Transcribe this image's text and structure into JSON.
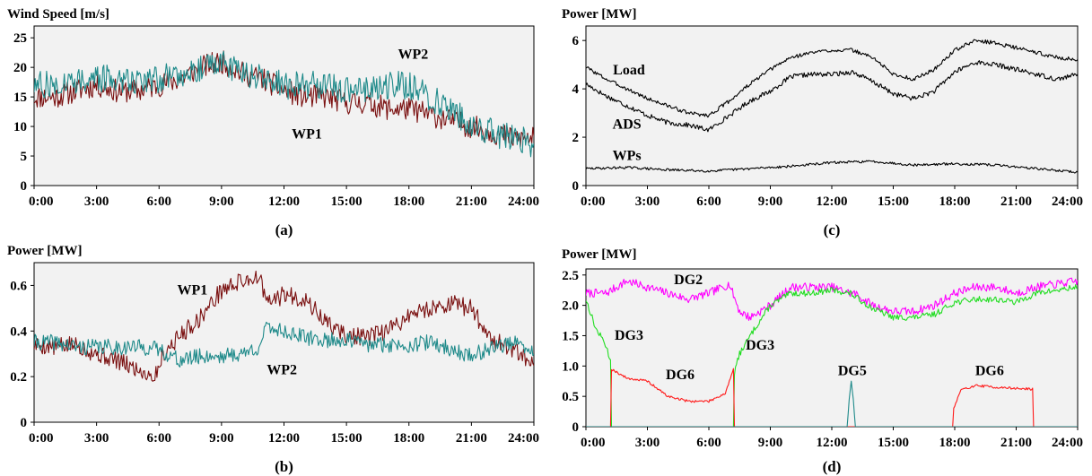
{
  "colors": {
    "wp1": "#7a1010",
    "wp2": "#1f8a8a",
    "black": "#000000",
    "dg2": "#ff00ff",
    "dg3": "#22dd22",
    "dg6": "#ff1a1a",
    "dg5": "#1f8a8a",
    "plot_bg": "#f2f2f2"
  },
  "chart_data": [
    {
      "id": "a",
      "type": "line",
      "panel_label": "(a)",
      "ylabel": "Wind Speed [m/s]",
      "xlabel": "",
      "xlim": [
        0,
        24
      ],
      "ylim": [
        0,
        27
      ],
      "x_ticks": [
        0,
        3,
        6,
        9,
        12,
        15,
        18,
        21,
        24
      ],
      "x_tick_labels": [
        "0:00",
        "3:00",
        "6:00",
        "9:00",
        "12:00",
        "15:00",
        "18:00",
        "21:00",
        "24:00"
      ],
      "y_ticks": [
        0,
        5,
        10,
        15,
        20,
        25
      ],
      "y_tick_labels": [
        "0",
        "5",
        "10",
        "15",
        "20",
        "25"
      ],
      "grid": false,
      "series": [
        {
          "name": "WP1",
          "color": "wp1",
          "noise": 2.0,
          "seed": 11,
          "x": [
            0,
            1,
            2,
            3,
            4,
            5,
            6,
            7,
            8,
            9,
            10,
            11,
            12,
            13,
            14,
            15,
            16,
            17,
            18,
            19,
            20,
            21,
            22,
            23,
            24
          ],
          "y": [
            15,
            15,
            16,
            17,
            16,
            16,
            17,
            18,
            20,
            21,
            19,
            18,
            16,
            15,
            15,
            14,
            14,
            13,
            13,
            12,
            11,
            10,
            9,
            8,
            8
          ]
        },
        {
          "name": "WP2",
          "color": "wp2",
          "noise": 2.4,
          "seed": 27,
          "x": [
            0,
            1,
            2,
            3,
            4,
            5,
            6,
            7,
            8,
            9,
            10,
            11,
            12,
            13,
            14,
            15,
            16,
            17,
            18,
            19,
            20,
            21,
            22,
            23,
            24
          ],
          "y": [
            17,
            17,
            18,
            18,
            18,
            18,
            18,
            19,
            20,
            21,
            19,
            18,
            17,
            17,
            17,
            16,
            16,
            17,
            17,
            15,
            13,
            10,
            9,
            8,
            7
          ]
        }
      ],
      "annotations": [
        {
          "text": "WP2",
          "x": 18.2,
          "y": 21.5
        },
        {
          "text": "WP1",
          "x": 13.1,
          "y": 8.0
        }
      ]
    },
    {
      "id": "b",
      "type": "line",
      "panel_label": "(b)",
      "ylabel": "Power [MW]",
      "xlabel": "",
      "xlim": [
        0,
        24
      ],
      "ylim": [
        0,
        0.7
      ],
      "x_ticks": [
        0,
        3,
        6,
        9,
        12,
        15,
        18,
        21,
        24
      ],
      "x_tick_labels": [
        "0:00",
        "3:00",
        "6:00",
        "9:00",
        "12:00",
        "15:00",
        "18:00",
        "21:00",
        "24:00"
      ],
      "y_ticks": [
        0,
        0.2,
        0.4,
        0.6
      ],
      "y_tick_labels": [
        "0",
        "0.2",
        "0.4",
        "0.6"
      ],
      "grid": false,
      "series": [
        {
          "name": "WP1",
          "color": "wp1",
          "noise": 0.04,
          "seed": 5,
          "x": [
            0,
            1,
            2,
            3,
            4,
            5,
            5.8,
            6.2,
            7,
            8,
            9,
            10,
            10.8,
            11.2,
            12,
            13,
            14,
            15,
            16,
            17,
            18,
            19,
            20,
            21,
            22,
            23,
            24
          ],
          "y": [
            0.34,
            0.33,
            0.34,
            0.3,
            0.27,
            0.23,
            0.2,
            0.3,
            0.38,
            0.46,
            0.58,
            0.62,
            0.64,
            0.52,
            0.56,
            0.54,
            0.44,
            0.38,
            0.37,
            0.4,
            0.47,
            0.5,
            0.52,
            0.5,
            0.36,
            0.32,
            0.24
          ]
        },
        {
          "name": "WP2",
          "color": "wp2",
          "noise": 0.035,
          "seed": 41,
          "x": [
            0,
            1,
            2,
            3,
            4,
            5,
            6,
            7,
            8,
            9,
            10,
            10.8,
            11.2,
            12,
            13,
            14,
            15,
            16,
            17,
            18,
            19,
            20,
            21,
            22,
            23,
            24
          ],
          "y": [
            0.35,
            0.35,
            0.33,
            0.33,
            0.33,
            0.33,
            0.32,
            0.27,
            0.29,
            0.29,
            0.3,
            0.33,
            0.42,
            0.4,
            0.37,
            0.36,
            0.36,
            0.34,
            0.34,
            0.34,
            0.35,
            0.32,
            0.29,
            0.33,
            0.35,
            0.3
          ]
        }
      ],
      "annotations": [
        {
          "text": "WP1",
          "x": 7.6,
          "y": 0.56
        },
        {
          "text": "WP2",
          "x": 11.9,
          "y": 0.21
        }
      ]
    },
    {
      "id": "c",
      "type": "line",
      "panel_label": "(c)",
      "ylabel": "Power [MW]",
      "xlabel": "",
      "xlim": [
        0,
        24
      ],
      "ylim": [
        0,
        6.6
      ],
      "x_ticks": [
        0,
        3,
        6,
        9,
        12,
        15,
        18,
        21,
        24
      ],
      "x_tick_labels": [
        "0:00",
        "3:00",
        "6:00",
        "9:00",
        "12:00",
        "15:00",
        "18:00",
        "21:00",
        "24:00"
      ],
      "y_ticks": [
        0,
        2,
        4,
        6
      ],
      "y_tick_labels": [
        "0",
        "2",
        "4",
        "6"
      ],
      "grid": false,
      "series": [
        {
          "name": "Load",
          "color": "black",
          "noise": 0.08,
          "seed": 3,
          "x": [
            0,
            1,
            2,
            3,
            4,
            5,
            6,
            7,
            8,
            9,
            10,
            11,
            12,
            13,
            14,
            15,
            16,
            17,
            18,
            19,
            20,
            21,
            22,
            23,
            24
          ],
          "y": [
            4.9,
            4.4,
            4.0,
            3.6,
            3.3,
            3.0,
            2.9,
            3.5,
            4.2,
            4.8,
            5.3,
            5.5,
            5.6,
            5.6,
            5.3,
            4.6,
            4.4,
            4.8,
            5.6,
            6.0,
            5.9,
            5.7,
            5.5,
            5.3,
            5.2
          ]
        },
        {
          "name": "ADS",
          "color": "black",
          "noise": 0.1,
          "seed": 17,
          "x": [
            0,
            1,
            2,
            3,
            4,
            5,
            6,
            7,
            8,
            9,
            10,
            11,
            12,
            13,
            14,
            15,
            16,
            17,
            18,
            19,
            20,
            21,
            22,
            23,
            24
          ],
          "y": [
            4.2,
            3.7,
            3.3,
            2.9,
            2.6,
            2.5,
            2.3,
            2.9,
            3.5,
            3.9,
            4.5,
            4.6,
            4.6,
            4.7,
            4.3,
            3.8,
            3.6,
            3.9,
            4.7,
            5.1,
            5.0,
            4.8,
            4.6,
            4.4,
            4.6
          ]
        },
        {
          "name": "WPs",
          "color": "black",
          "noise": 0.05,
          "seed": 29,
          "x": [
            0,
            2,
            4,
            6,
            8,
            10,
            12,
            14,
            16,
            18,
            20,
            22,
            24
          ],
          "y": [
            0.7,
            0.75,
            0.65,
            0.6,
            0.7,
            0.8,
            0.95,
            1.0,
            0.85,
            0.9,
            0.85,
            0.7,
            0.55
          ]
        }
      ],
      "annotations": [
        {
          "text": "Load",
          "x": 2.1,
          "y": 4.6
        },
        {
          "text": "ADS",
          "x": 2.0,
          "y": 2.35
        },
        {
          "text": "WPs",
          "x": 2.0,
          "y": 1.05
        }
      ]
    },
    {
      "id": "d",
      "type": "line",
      "panel_label": "(d)",
      "ylabel": "Power [MW]",
      "xlabel": "",
      "xlim": [
        0,
        24
      ],
      "ylim": [
        0,
        2.6
      ],
      "x_ticks": [
        0,
        3,
        6,
        9,
        12,
        15,
        18,
        21,
        24
      ],
      "x_tick_labels": [
        "0:00",
        "3:00",
        "6:00",
        "9:00",
        "12:00",
        "15:00",
        "18:00",
        "21:00",
        "24:00"
      ],
      "y_ticks": [
        0,
        0.5,
        1.0,
        1.5,
        2.0,
        2.5
      ],
      "y_tick_labels": [
        "0",
        "0.5",
        "1.0",
        "1.5",
        "2.0",
        "2.5"
      ],
      "grid": false,
      "series": [
        {
          "name": "DG2",
          "color": "dg2",
          "noise": 0.07,
          "seed": 7,
          "x": [
            0,
            1,
            2,
            3,
            4,
            5,
            6,
            7,
            7.5,
            8,
            9,
            10,
            11,
            12,
            12.9,
            13.1,
            14,
            15,
            16,
            17,
            18,
            19,
            20,
            21,
            22,
            23,
            24
          ],
          "y": [
            2.2,
            2.2,
            2.4,
            2.3,
            2.2,
            2.1,
            2.2,
            2.35,
            1.9,
            1.8,
            2.0,
            2.3,
            2.3,
            2.3,
            2.2,
            2.2,
            2.0,
            1.9,
            1.9,
            2.0,
            2.2,
            2.3,
            2.3,
            2.2,
            2.3,
            2.35,
            2.4
          ]
        },
        {
          "name": "DG3",
          "color": "dg3",
          "noise": 0.05,
          "seed": 13,
          "x": [
            0,
            0.5,
            0.9,
            1.2,
            1.25,
            7.2,
            7.25,
            7.5,
            8.2,
            9,
            10,
            11,
            12,
            12.9,
            13.1,
            14,
            15,
            16,
            17,
            18,
            19,
            20,
            21,
            22,
            23,
            24
          ],
          "y": [
            2.1,
            1.6,
            1.4,
            1.1,
            0,
            0,
            0.9,
            1.2,
            1.6,
            2.0,
            2.2,
            2.2,
            2.25,
            2.2,
            2.15,
            1.95,
            1.8,
            1.8,
            1.85,
            2.05,
            2.1,
            2.1,
            2.05,
            2.2,
            2.25,
            2.3
          ]
        },
        {
          "name": "DG6",
          "color": "dg6",
          "noise": 0.02,
          "seed": 19,
          "x": [
            0,
            1.2,
            1.25,
            2,
            3,
            4,
            5,
            6,
            6.8,
            7.2,
            7.25,
            17.9,
            17.95,
            18.3,
            19,
            20,
            21,
            21.8,
            21.85,
            24
          ],
          "y": [
            0,
            0,
            0.95,
            0.8,
            0.75,
            0.5,
            0.42,
            0.42,
            0.55,
            0.95,
            0,
            0,
            0.3,
            0.6,
            0.68,
            0.65,
            0.63,
            0.62,
            0,
            0
          ]
        },
        {
          "name": "DG5",
          "color": "dg5",
          "noise": 0.0,
          "seed": 23,
          "x": [
            0,
            12.75,
            12.85,
            12.95,
            13.05,
            13.15,
            24
          ],
          "y": [
            0,
            0,
            0.45,
            0.75,
            0.45,
            0,
            0
          ]
        }
      ],
      "annotations": [
        {
          "text": "DG2",
          "x": 5.0,
          "y": 2.35
        },
        {
          "text": "DG3",
          "x": 2.1,
          "y": 1.43
        },
        {
          "text": "DG3",
          "x": 8.5,
          "y": 1.27
        },
        {
          "text": "DG6",
          "x": 4.6,
          "y": 0.78
        },
        {
          "text": "DG5",
          "x": 13.0,
          "y": 0.85
        },
        {
          "text": "DG6",
          "x": 19.7,
          "y": 0.85
        }
      ]
    }
  ]
}
